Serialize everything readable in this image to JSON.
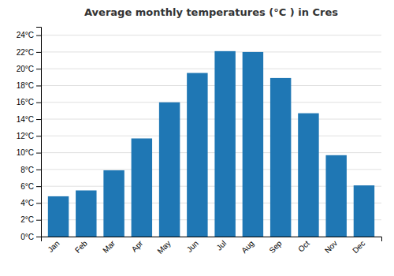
{
  "chart_data": {
    "type": "bar",
    "title": "Average monthly temperatures (°C ) in Cres",
    "categories": [
      "Jan",
      "Feb",
      "Mar",
      "Apr",
      "May",
      "Jun",
      "Jul",
      "Aug",
      "Sep",
      "Oct",
      "Nov",
      "Dec"
    ],
    "values": [
      4.8,
      5.5,
      7.9,
      11.7,
      16.0,
      19.5,
      22.1,
      22.0,
      18.9,
      14.7,
      9.7,
      6.1
    ],
    "ylim": [
      0,
      25
    ],
    "yticks": [
      {
        "value": 0,
        "label": "0°C"
      },
      {
        "value": 2,
        "label": "2°C"
      },
      {
        "value": 4,
        "label": "4°C"
      },
      {
        "value": 6,
        "label": "6°C"
      },
      {
        "value": 8,
        "label": "8°C"
      },
      {
        "value": 10,
        "label": "10°C"
      },
      {
        "value": 12,
        "label": "12°C"
      },
      {
        "value": 14,
        "label": "14°C"
      },
      {
        "value": 16,
        "label": "16°C"
      },
      {
        "value": 18,
        "label": "18°C"
      },
      {
        "value": 20,
        "label": "20°C"
      },
      {
        "value": 22,
        "label": "22°C"
      },
      {
        "value": 24,
        "label": "24°C"
      }
    ],
    "grid": true
  }
}
